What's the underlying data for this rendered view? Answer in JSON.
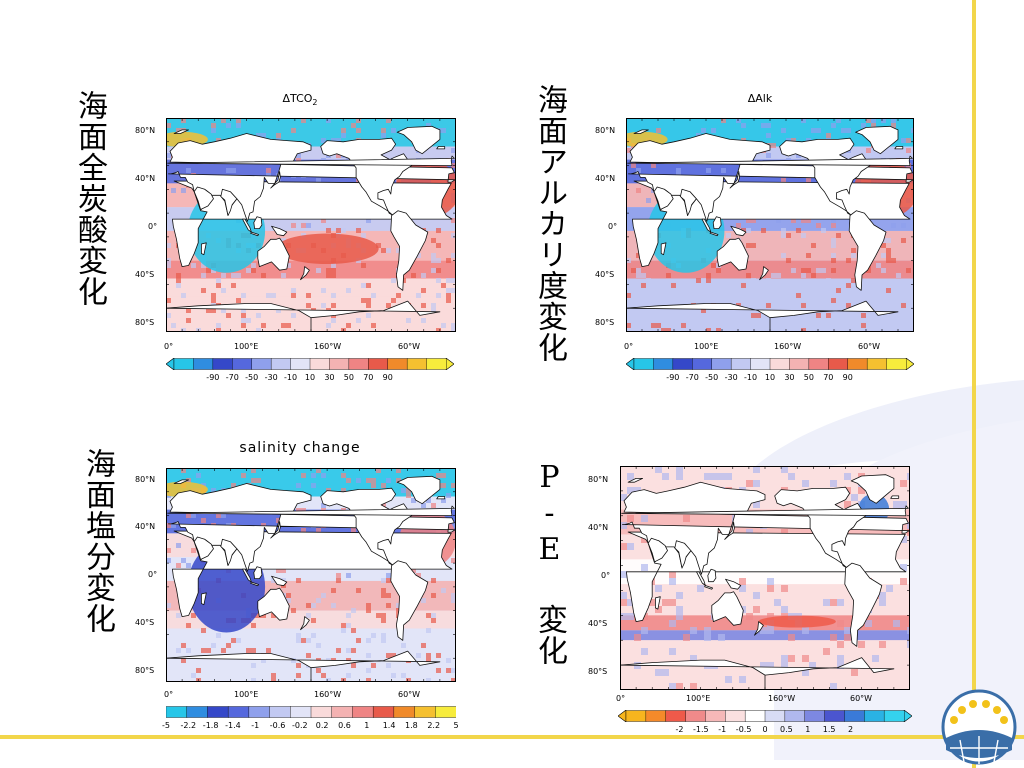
{
  "labels": {
    "tco2": "海面全炭酸変化",
    "alk": "海面アルカリ度変化",
    "sal": "海面塩分変化",
    "pe": "P-E 変化"
  },
  "panels": {
    "tco2": {
      "title_delta": "Δ",
      "title_main": "TCO",
      "title_sub": "2",
      "lat_labels": [
        "80°N",
        "40°N",
        "0°",
        "40°S",
        "80°S"
      ],
      "lon_labels": [
        "0°",
        "100°E",
        "160°W",
        "60°W"
      ],
      "colorbar_ticks": [
        "-90",
        "-70",
        "-50",
        "-30",
        "-10",
        "10",
        "30",
        "50",
        "70",
        "90"
      ]
    },
    "alk": {
      "title": "ΔAlk",
      "lat_labels": [
        "80°N",
        "40°N",
        "0°",
        "40°S",
        "80°S"
      ],
      "lon_labels": [
        "0°",
        "100°E",
        "160°W",
        "60°W"
      ],
      "colorbar_ticks": [
        "-90",
        "-70",
        "-50",
        "-30",
        "-10",
        "10",
        "30",
        "50",
        "70",
        "90"
      ]
    },
    "sal": {
      "title": "salinity change",
      "lat_labels": [
        "80°N",
        "40°N",
        "0°",
        "40°S",
        "80°S"
      ],
      "lon_labels": [
        "0°",
        "100°E",
        "160°W",
        "60°W"
      ],
      "colorbar_ticks": [
        "-5",
        "-2.2",
        "-1.8",
        "-1.4",
        "-1",
        "-0.6",
        "-0.2",
        "0.2",
        "0.6",
        "1",
        "1.4",
        "1.8",
        "2.2",
        "5"
      ]
    },
    "pe": {
      "lat_labels": [
        "80°N",
        "40°N",
        "0°",
        "40°S",
        "80°S"
      ],
      "lon_labels": [
        "0°",
        "100°E",
        "160°W",
        "60°W"
      ],
      "colorbar_ticks": [
        "-2",
        "-1.5",
        "-1",
        "-0.5",
        "0",
        "0.5",
        "1",
        "1.5",
        "2"
      ]
    }
  },
  "colors": {
    "accent_line": "#f2d64a",
    "scale_diverging": [
      "#27c6e8",
      "#2f8de0",
      "#3548c9",
      "#5568dd",
      "#8fa0ec",
      "#c2c9f2",
      "#e2e4f7",
      "#f9dada",
      "#f4b2b2",
      "#ef8484",
      "#e85a4a",
      "#f08a2a",
      "#f5c030",
      "#f7ec3c"
    ],
    "scale_pe": [
      "#f7b51e",
      "#f58a2a",
      "#ef5a4a",
      "#f08a8a",
      "#f6b8b8",
      "#fbe0e0",
      "#ffffff",
      "#d8dcf5",
      "#b0b8ee",
      "#7d88e2",
      "#4b55cf",
      "#3a7ad8",
      "#2ab2e4",
      "#34d2ee"
    ]
  }
}
